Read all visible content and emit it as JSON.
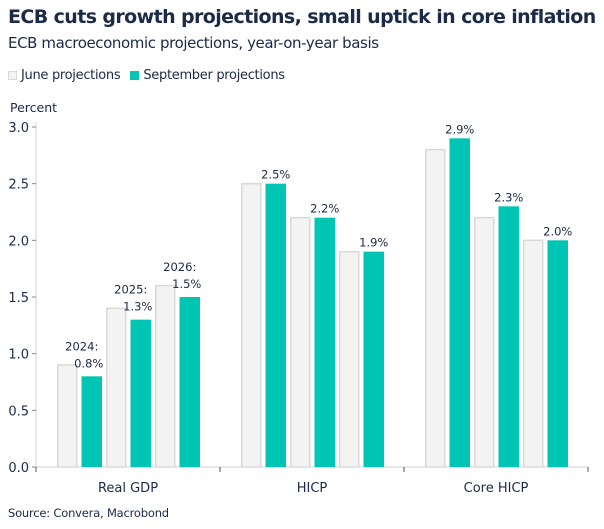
{
  "title": "ECB cuts growth projections, small uptick in core inflation",
  "subtitle": "ECB macroeconomic projections, year-on-year basis",
  "source": "Source: Convera, Macrobond",
  "colors": {
    "june_fill": "#f3f3f3",
    "june_stroke": "#d9d9d9",
    "september": "#00c5b2",
    "text": "#1b2a47"
  },
  "chart_data": {
    "type": "bar",
    "ylabel": "Percent",
    "ylim": [
      0,
      3.0
    ],
    "yticks": [
      "0.0",
      "0.5",
      "1.0",
      "1.5",
      "2.0",
      "2.5",
      "3.0"
    ],
    "categories": [
      "Real GDP",
      "HICP",
      "Core HICP"
    ],
    "sub_categories": [
      "2024",
      "2025",
      "2026"
    ],
    "legend_position": "top-left",
    "grid": false,
    "series": [
      {
        "name": "June projections",
        "values": [
          [
            0.9,
            1.4,
            1.6
          ],
          [
            2.5,
            2.2,
            1.9
          ],
          [
            2.8,
            2.2,
            2.0
          ]
        ]
      },
      {
        "name": "September projections",
        "values": [
          [
            0.8,
            1.3,
            1.5
          ],
          [
            2.5,
            2.2,
            1.9
          ],
          [
            2.9,
            2.3,
            2.0
          ]
        ]
      }
    ],
    "annotations": [
      [
        "2024:",
        "0.8%"
      ],
      [
        "2025:",
        "1.3%"
      ],
      [
        "2026:",
        "1.5%"
      ],
      [
        "2.5%"
      ],
      [
        "2.2%"
      ],
      [
        "1.9%"
      ],
      [
        "2.9%"
      ],
      [
        "2.3%"
      ],
      [
        "2.0%"
      ]
    ]
  }
}
